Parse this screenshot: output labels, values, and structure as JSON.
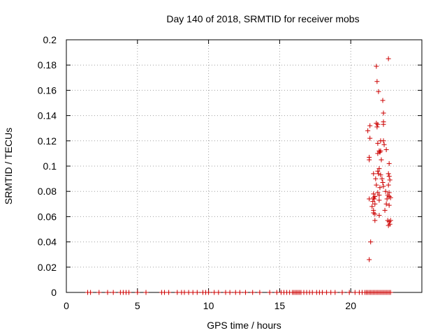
{
  "chart_data": {
    "type": "scatter",
    "title": "Day 140 of 2018, SRMTID for receiver mobs",
    "xlabel": "GPS time / hours",
    "ylabel": "SRMTID / TECUs",
    "xlim": [
      0,
      25
    ],
    "ylim": [
      0,
      0.2
    ],
    "grid": true,
    "marker": "+",
    "series_color": "#cc0000",
    "x_ticks": [
      0,
      5,
      10,
      15,
      20
    ],
    "x_tick_labels": [
      "0",
      "5",
      "10",
      "15",
      "20"
    ],
    "y_ticks": [
      0,
      0.02,
      0.04,
      0.06,
      0.08,
      0.1,
      0.12,
      0.14,
      0.16,
      0.18,
      0.2
    ],
    "y_tick_labels": [
      "0",
      "0.02",
      "0.04",
      "0.06",
      "0.08",
      "0.1",
      "0.12",
      "0.14",
      "0.16",
      "0.18",
      "0.2"
    ],
    "points": [
      [
        1.5,
        0
      ],
      [
        1.7,
        0
      ],
      [
        2.3,
        0
      ],
      [
        2.9,
        0
      ],
      [
        3.3,
        0
      ],
      [
        3.8,
        0
      ],
      [
        4.0,
        0
      ],
      [
        4.2,
        0
      ],
      [
        4.4,
        0
      ],
      [
        5.0,
        0
      ],
      [
        5.6,
        0
      ],
      [
        6.7,
        0
      ],
      [
        6.9,
        0
      ],
      [
        7.2,
        0
      ],
      [
        7.8,
        0
      ],
      [
        8.1,
        0
      ],
      [
        8.3,
        0
      ],
      [
        8.6,
        0
      ],
      [
        8.9,
        0
      ],
      [
        9.2,
        0
      ],
      [
        9.6,
        0
      ],
      [
        9.8,
        0
      ],
      [
        10.0,
        0
      ],
      [
        10.4,
        0
      ],
      [
        10.7,
        0
      ],
      [
        11.2,
        0
      ],
      [
        11.5,
        0
      ],
      [
        11.9,
        0
      ],
      [
        12.2,
        0
      ],
      [
        12.6,
        0
      ],
      [
        13.1,
        0
      ],
      [
        13.6,
        0
      ],
      [
        14.3,
        0
      ],
      [
        14.8,
        0
      ],
      [
        15.1,
        0
      ],
      [
        15.3,
        0
      ],
      [
        15.5,
        0
      ],
      [
        15.7,
        0
      ],
      [
        15.9,
        0
      ],
      [
        16.0,
        0
      ],
      [
        16.1,
        0
      ],
      [
        16.2,
        0
      ],
      [
        16.3,
        0
      ],
      [
        16.4,
        0
      ],
      [
        16.5,
        0
      ],
      [
        16.7,
        0
      ],
      [
        16.9,
        0
      ],
      [
        17.1,
        0
      ],
      [
        17.3,
        0
      ],
      [
        17.6,
        0
      ],
      [
        17.8,
        0
      ],
      [
        18.0,
        0
      ],
      [
        18.3,
        0
      ],
      [
        18.6,
        0
      ],
      [
        18.9,
        0
      ],
      [
        19.4,
        0
      ],
      [
        19.9,
        0
      ],
      [
        20.3,
        0
      ],
      [
        20.6,
        0
      ],
      [
        20.8,
        0
      ],
      [
        21.0,
        0
      ],
      [
        21.1,
        0
      ],
      [
        21.2,
        0
      ],
      [
        21.3,
        0
      ],
      [
        21.4,
        0
      ],
      [
        21.5,
        0
      ],
      [
        21.6,
        0
      ],
      [
        21.7,
        0
      ],
      [
        21.8,
        0
      ],
      [
        21.9,
        0
      ],
      [
        22.0,
        0
      ],
      [
        22.1,
        0
      ],
      [
        22.2,
        0
      ],
      [
        22.3,
        0
      ],
      [
        22.4,
        0
      ],
      [
        22.5,
        0
      ],
      [
        22.6,
        0
      ],
      [
        22.7,
        0
      ],
      [
        22.8,
        0
      ],
      [
        21.3,
        0.026
      ],
      [
        21.4,
        0.04
      ],
      [
        21.3,
        0.074
      ],
      [
        21.2,
        0.128
      ],
      [
        21.35,
        0.132
      ],
      [
        21.35,
        0.122
      ],
      [
        21.3,
        0.107
      ],
      [
        21.3,
        0.105
      ],
      [
        21.6,
        0.094
      ],
      [
        21.6,
        0.078
      ],
      [
        21.65,
        0.074
      ],
      [
        21.7,
        0.076
      ],
      [
        21.55,
        0.072
      ],
      [
        21.5,
        0.068
      ],
      [
        21.6,
        0.065
      ],
      [
        21.6,
        0.063
      ],
      [
        21.7,
        0.062
      ],
      [
        21.7,
        0.057
      ],
      [
        21.6,
        0.075
      ],
      [
        21.7,
        0.07
      ],
      [
        21.75,
        0.09
      ],
      [
        21.8,
        0.179
      ],
      [
        21.85,
        0.167
      ],
      [
        21.8,
        0.134
      ],
      [
        21.9,
        0.133
      ],
      [
        21.85,
        0.131
      ],
      [
        21.95,
        0.159
      ],
      [
        21.9,
        0.118
      ],
      [
        21.9,
        0.11
      ],
      [
        22.0,
        0.112
      ],
      [
        22.0,
        0.098
      ],
      [
        21.9,
        0.096
      ],
      [
        21.95,
        0.094
      ],
      [
        21.8,
        0.085
      ],
      [
        21.9,
        0.079
      ],
      [
        22.0,
        0.077
      ],
      [
        22.0,
        0.073
      ],
      [
        22.0,
        0.061
      ],
      [
        22.05,
        0.083
      ],
      [
        22.1,
        0.093
      ],
      [
        22.05,
        0.111
      ],
      [
        22.1,
        0.112
      ],
      [
        22.1,
        0.12
      ],
      [
        22.15,
        0.105
      ],
      [
        22.25,
        0.152
      ],
      [
        22.3,
        0.142
      ],
      [
        22.3,
        0.135
      ],
      [
        22.3,
        0.133
      ],
      [
        22.3,
        0.12
      ],
      [
        22.35,
        0.117
      ],
      [
        22.2,
        0.09
      ],
      [
        22.25,
        0.087
      ],
      [
        22.3,
        0.084
      ],
      [
        22.4,
        0.065
      ],
      [
        22.45,
        0.08
      ],
      [
        22.5,
        0.113
      ],
      [
        22.5,
        0.07
      ],
      [
        22.55,
        0.074
      ],
      [
        22.6,
        0.077
      ],
      [
        22.65,
        0.185
      ],
      [
        22.7,
        0.102
      ],
      [
        22.65,
        0.094
      ],
      [
        22.7,
        0.092
      ],
      [
        22.75,
        0.089
      ],
      [
        22.65,
        0.085
      ],
      [
        22.7,
        0.079
      ],
      [
        22.7,
        0.076
      ],
      [
        22.8,
        0.075
      ],
      [
        22.6,
        0.057
      ],
      [
        22.7,
        0.056
      ],
      [
        22.75,
        0.054
      ],
      [
        22.65,
        0.053
      ],
      [
        22.8,
        0.057
      ],
      [
        22.7,
        0.069
      ]
    ]
  }
}
